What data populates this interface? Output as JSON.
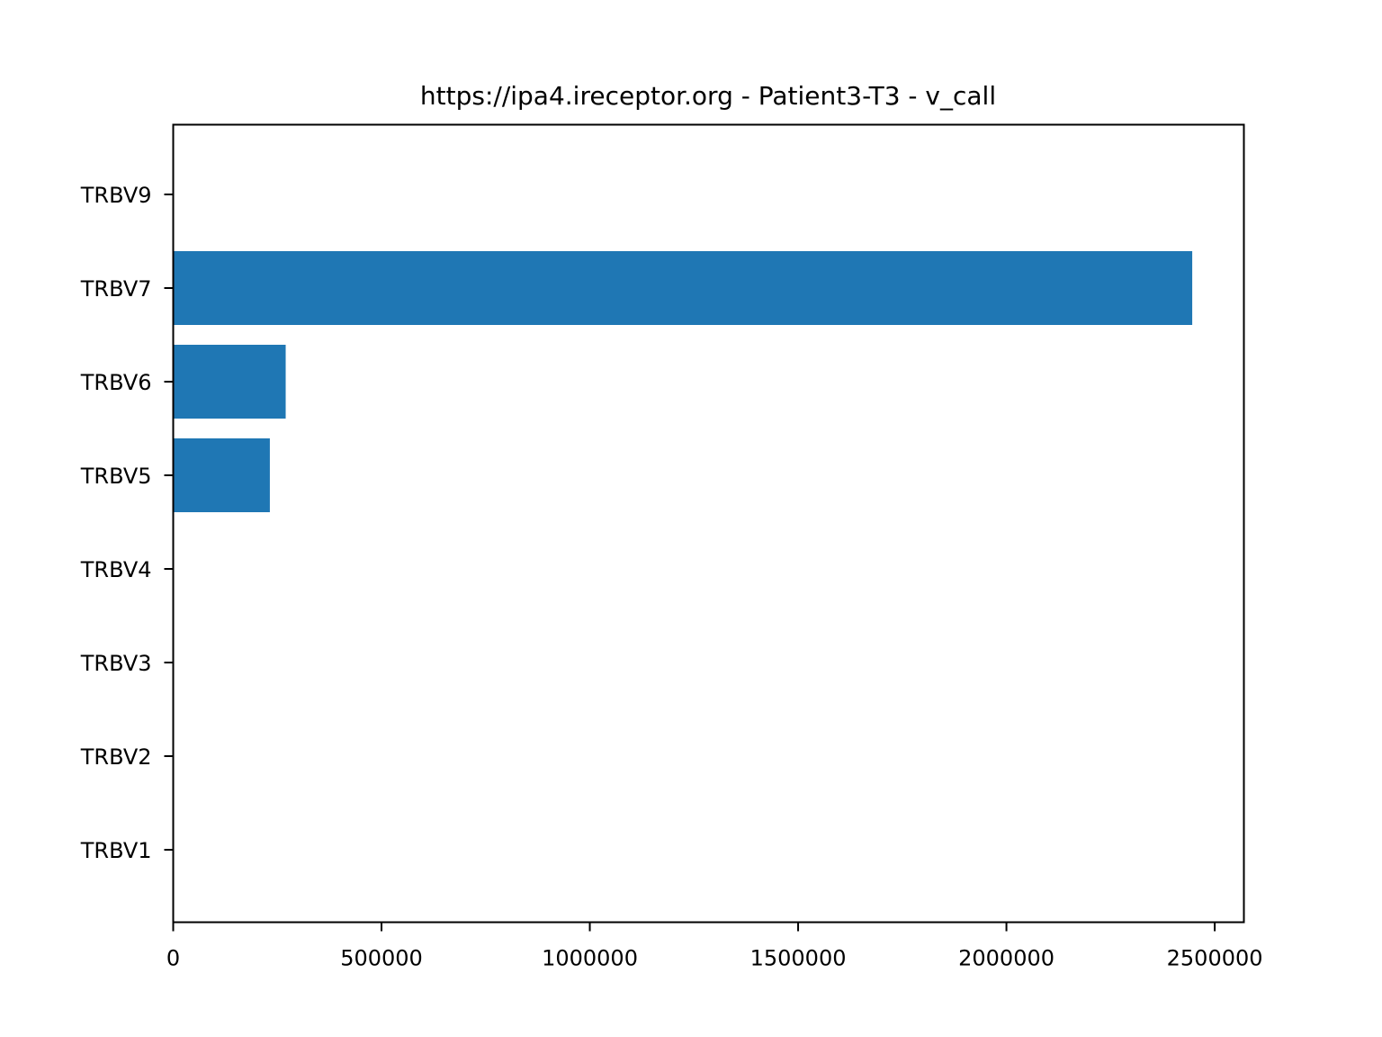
{
  "chart_data": {
    "type": "bar",
    "orientation": "horizontal",
    "title": "https://ipa4.ireceptor.org - Patient3-T3 - v_call",
    "xlabel": "",
    "ylabel": "",
    "categories": [
      "TRBV1",
      "TRBV2",
      "TRBV3",
      "TRBV4",
      "TRBV5",
      "TRBV6",
      "TRBV7",
      "TRBV9"
    ],
    "values": [
      0,
      0,
      0,
      2000,
      232000,
      270000,
      2446000,
      0
    ],
    "xlim": [
      0,
      2570000
    ],
    "xticks": [
      0,
      500000,
      1000000,
      1500000,
      2000000,
      2500000
    ],
    "xtick_labels": [
      "0",
      "500000",
      "1000000",
      "1500000",
      "2000000",
      "2500000"
    ],
    "bar_color": "#1f77b4",
    "grid": false,
    "legend": "none"
  }
}
